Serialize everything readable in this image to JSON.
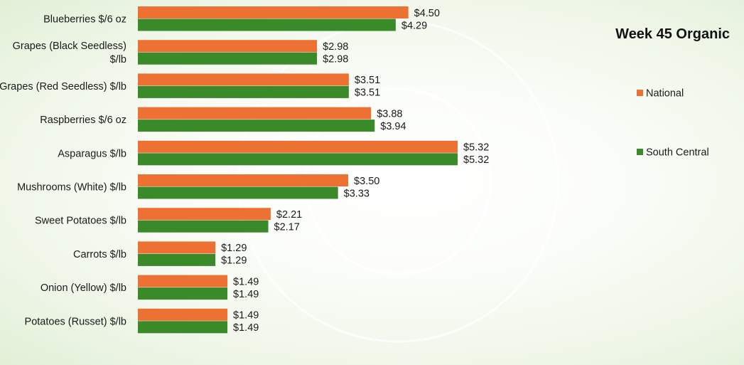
{
  "chart_data": {
    "type": "bar",
    "orientation": "horizontal",
    "title": "Week 45 Organic",
    "categories": [
      [
        "Blueberries $/6 oz"
      ],
      [
        "Grapes (Black Seedless)",
        "$/lb"
      ],
      [
        "Grapes (Red Seedless) $/lb"
      ],
      [
        "Raspberries $/6 oz"
      ],
      [
        "Asparagus $/lb"
      ],
      [
        "Mushrooms (White) $/lb"
      ],
      [
        "Sweet Potatoes $/lb"
      ],
      [
        "Carrots $/lb"
      ],
      [
        "Onion (Yellow) $/lb"
      ],
      [
        "Potatoes (Russet) $/lb"
      ]
    ],
    "series": [
      {
        "name": "National",
        "color": "#ED7133",
        "values": [
          4.5,
          2.98,
          3.51,
          3.88,
          5.32,
          3.5,
          2.21,
          1.29,
          1.49,
          1.49
        ],
        "labels": [
          "$4.50",
          "$2.98",
          "$3.51",
          "$3.88",
          "$5.32",
          "$3.50",
          "$2.21",
          "$1.29",
          "$1.49",
          "$1.49"
        ]
      },
      {
        "name": "South Central",
        "color": "#3A8A2A",
        "values": [
          4.29,
          2.98,
          3.51,
          3.94,
          5.32,
          3.33,
          2.17,
          1.29,
          1.49,
          1.49
        ],
        "labels": [
          "$4.29",
          "$2.98",
          "$3.51",
          "$3.94",
          "$5.32",
          "$3.33",
          "$2.17",
          "$1.29",
          "$1.49",
          "$1.49"
        ]
      }
    ],
    "xlim": [
      0,
      5.32
    ],
    "grid": false,
    "legend_position": "right"
  }
}
